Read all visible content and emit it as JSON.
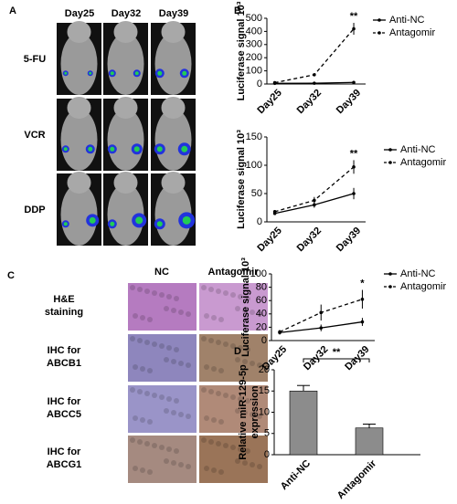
{
  "panel_a": {
    "label": "A",
    "columns": [
      "Day25",
      "Day32",
      "Day39"
    ],
    "rows": [
      "5-FU",
      "VCR",
      "DDP"
    ]
  },
  "panel_c": {
    "label": "C",
    "columns": [
      "NC",
      "Antagomir"
    ],
    "rows": [
      [
        "H&E",
        "staining"
      ],
      [
        "IHC for",
        "ABCB1"
      ],
      [
        "IHC for",
        "ABCC5"
      ],
      [
        "IHC for",
        "ABCG1"
      ]
    ]
  },
  "chart_data": [
    {
      "type": "line",
      "panel": "B",
      "ylabel": "Luciferase signal 10³",
      "categories": [
        "Day25",
        "Day32",
        "Day39"
      ],
      "ylim": [
        0,
        500
      ],
      "yticks": [
        0,
        100,
        200,
        300,
        400,
        500
      ],
      "annotation": "**",
      "series": [
        {
          "name": "Anti-NC",
          "color": "#000000",
          "line_style": "solid",
          "values": [
            5,
            6,
            12
          ],
          "errors": [
            2,
            2,
            3
          ]
        },
        {
          "name": "Antagomir",
          "color": "#000000",
          "line_style": "dashed",
          "values": [
            10,
            70,
            420
          ],
          "errors": [
            3,
            8,
            45
          ]
        }
      ]
    },
    {
      "type": "line",
      "ylabel": "Luciferase signal 10³",
      "categories": [
        "Day25",
        "Day32",
        "Day39"
      ],
      "ylim": [
        0,
        150
      ],
      "yticks": [
        0,
        50,
        100,
        150
      ],
      "annotation": "**",
      "series": [
        {
          "name": "Anti-NC",
          "color": "#000000",
          "line_style": "solid",
          "values": [
            15,
            30,
            50
          ],
          "errors": [
            3,
            5,
            10
          ]
        },
        {
          "name": "Antagomir",
          "color": "#000000",
          "line_style": "dashed",
          "values": [
            18,
            38,
            97
          ],
          "errors": [
            3,
            6,
            12
          ]
        }
      ]
    },
    {
      "type": "line",
      "ylabel": "Luciferase signal 10³",
      "categories": [
        "Day25",
        "Day32",
        "Day39"
      ],
      "ylim": [
        0,
        100
      ],
      "yticks": [
        0,
        20,
        40,
        60,
        80,
        100
      ],
      "annotation": "*",
      "series": [
        {
          "name": "Anti-NC",
          "color": "#000000",
          "line_style": "solid",
          "values": [
            12,
            19,
            28
          ],
          "errors": [
            3,
            5,
            6
          ]
        },
        {
          "name": "Antagomir",
          "color": "#000000",
          "line_style": "dashed",
          "values": [
            13,
            42,
            62
          ],
          "errors": [
            3,
            12,
            14
          ]
        }
      ]
    },
    {
      "type": "bar",
      "panel": "D",
      "ylabel": [
        "Relative miR-129-5p",
        "expression"
      ],
      "categories": [
        "Anti-NC",
        "Antagomir"
      ],
      "values": [
        15,
        6.3
      ],
      "errors": [
        1.3,
        0.9
      ],
      "color": "#8c8c8c",
      "ylim": [
        0,
        20
      ],
      "yticks": [
        0,
        5,
        10,
        15,
        20
      ],
      "annotation": "**"
    }
  ]
}
